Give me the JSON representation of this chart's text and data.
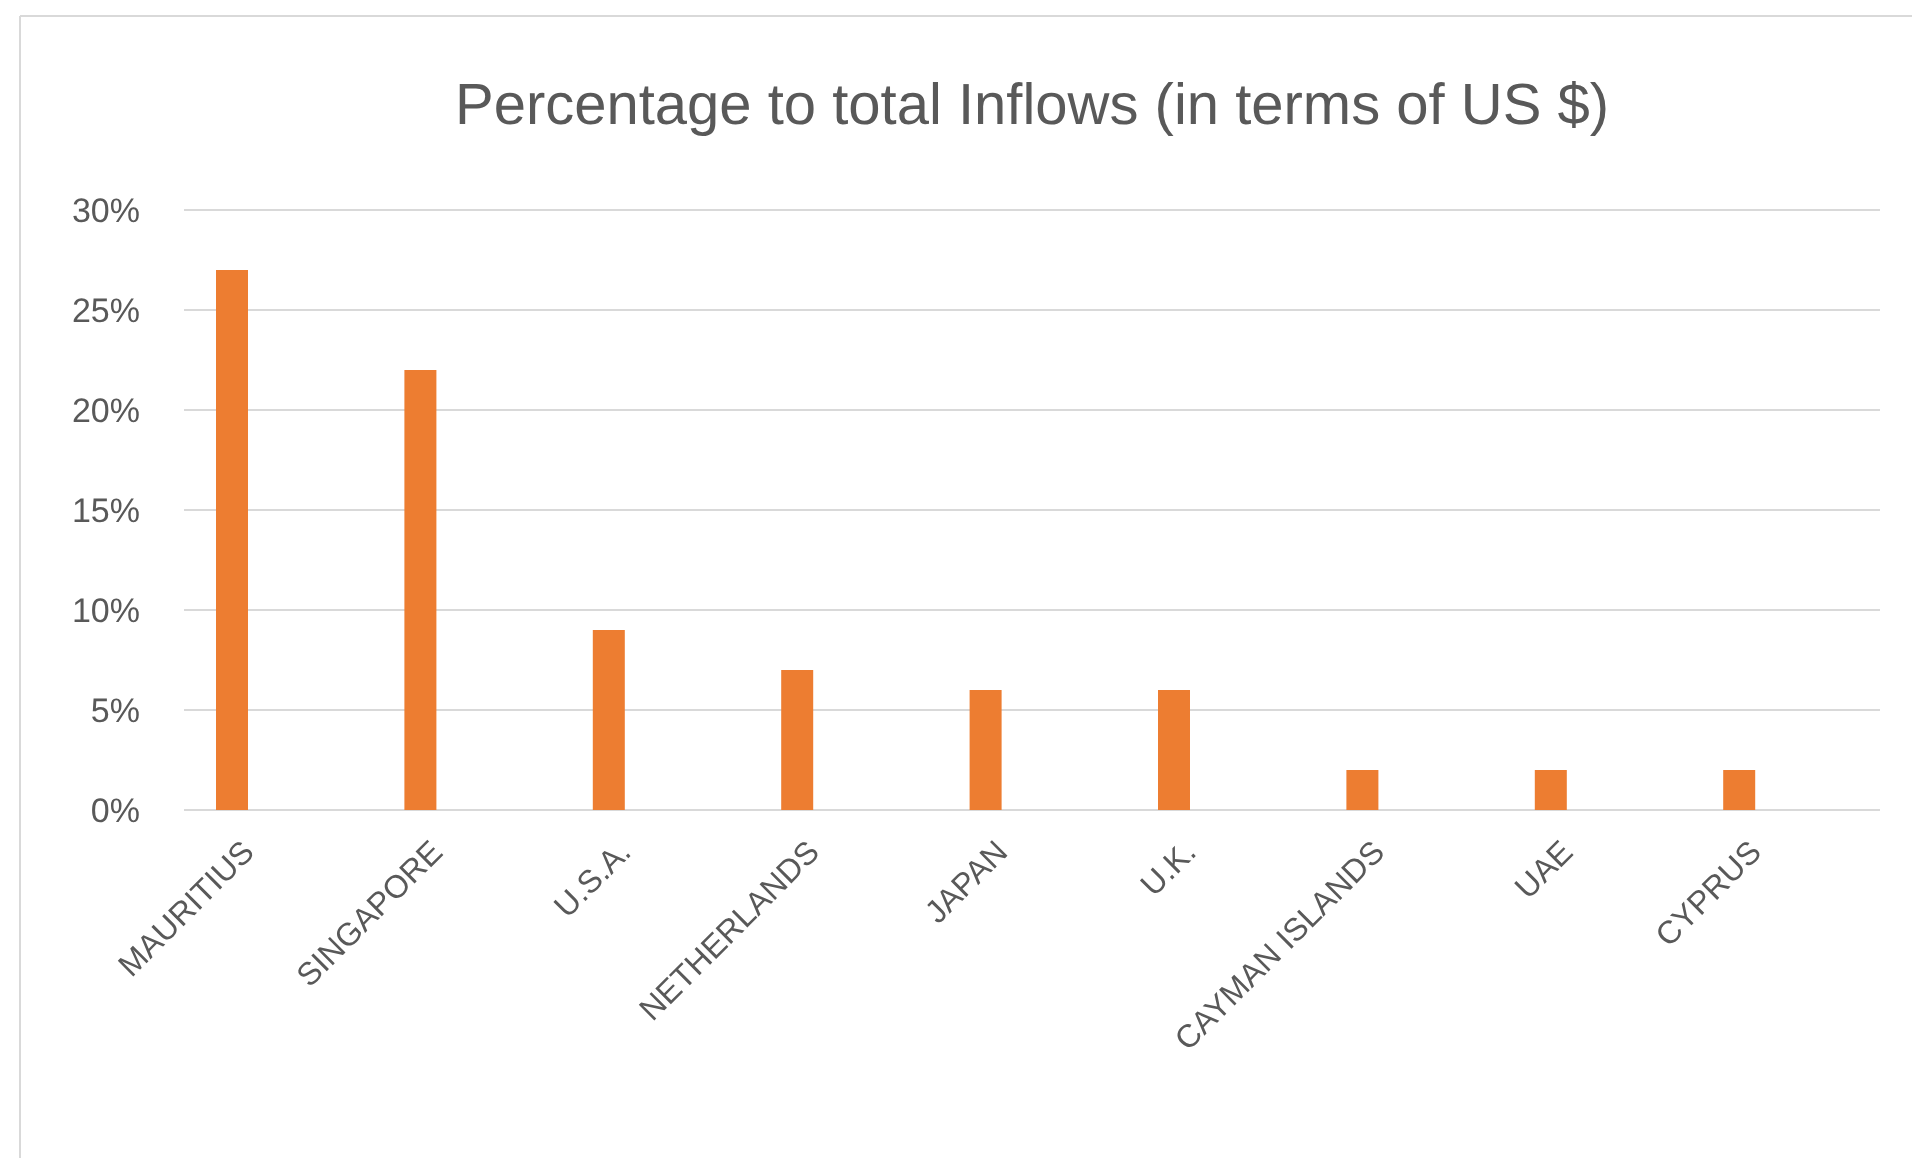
{
  "chart_data": {
    "type": "bar",
    "title": "Percentage to  total Inflows (in terms of US $)",
    "categories": [
      "MAURITIUS",
      "SINGAPORE",
      "U.S.A.",
      "NETHERLANDS",
      "JAPAN",
      "U.K.",
      "CAYMAN ISLANDS",
      "UAE",
      "CYPRUS"
    ],
    "values": [
      27,
      22,
      9,
      7,
      6,
      6,
      2,
      2,
      2
    ],
    "color": "#ed7d31",
    "ylim": [
      0,
      30
    ],
    "yticks": [
      {
        "value": 0,
        "label": "0%"
      },
      {
        "value": 5,
        "label": "5%"
      },
      {
        "value": 10,
        "label": "10%"
      },
      {
        "value": 15,
        "label": "15%"
      },
      {
        "value": 20,
        "label": "20%"
      },
      {
        "value": 25,
        "label": "25%"
      },
      {
        "value": 30,
        "label": "30%"
      }
    ],
    "grid": "y"
  }
}
